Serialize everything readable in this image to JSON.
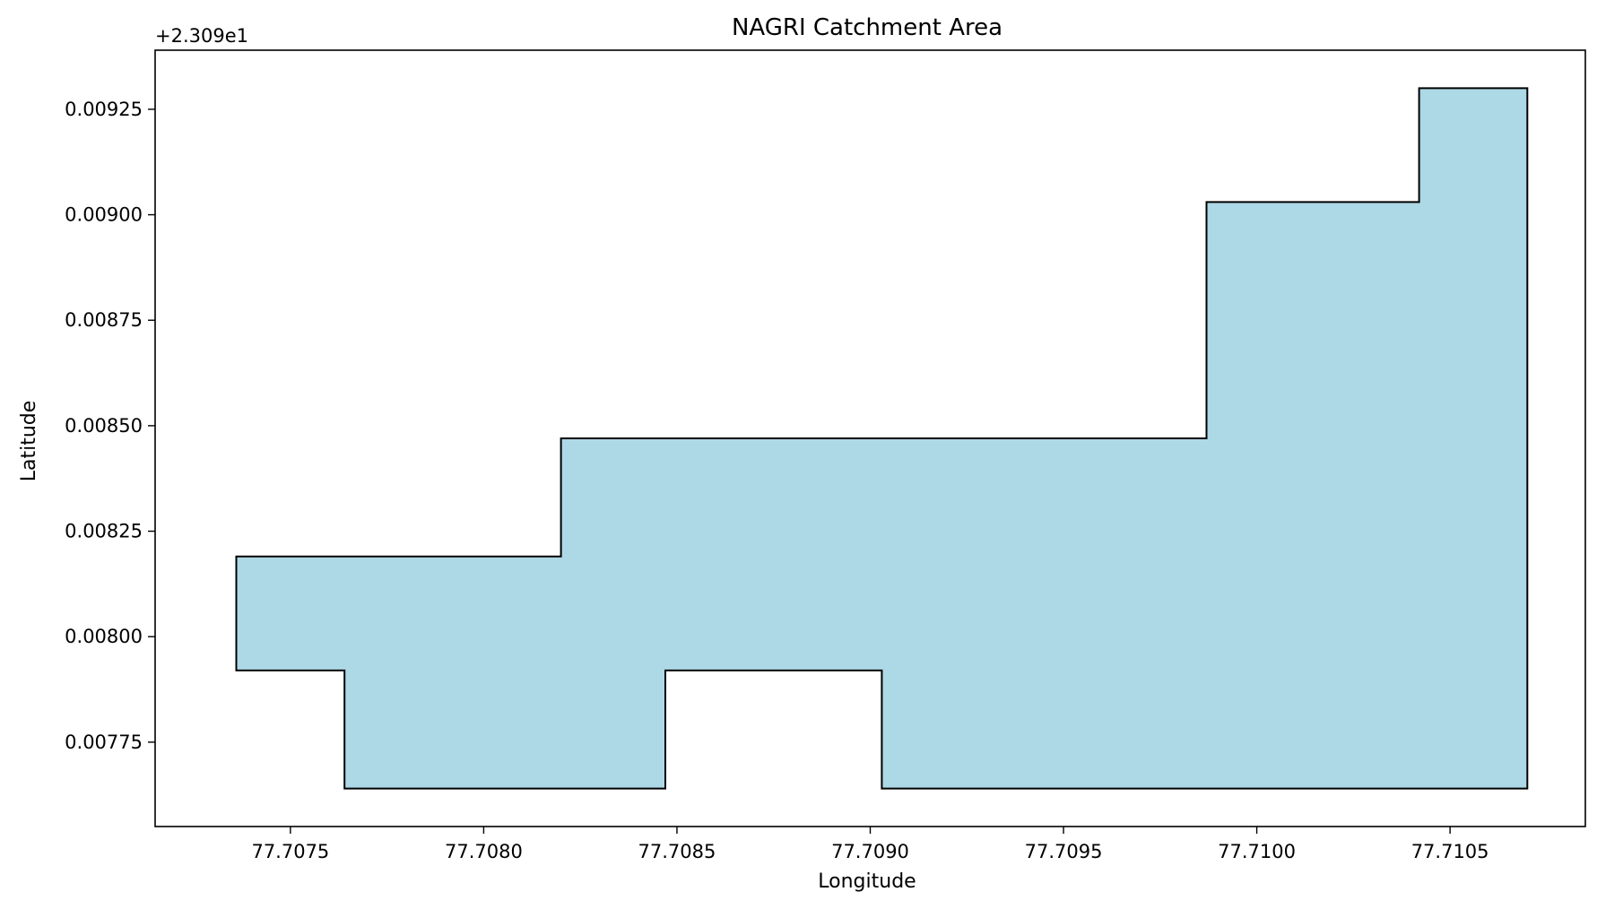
{
  "chart_data": {
    "type": "area",
    "title": "NAGRI Catchment Area",
    "xlabel": "Longitude",
    "ylabel": "Latitude",
    "y_offset_label": "+2.309e1",
    "xlim": [
      77.70715,
      77.71085
    ],
    "ylim": [
      0.00755,
      0.00939
    ],
    "x_ticks": [
      77.7075,
      77.708,
      77.7085,
      77.709,
      77.7095,
      77.71,
      77.7105
    ],
    "x_tick_labels": [
      "77.7075",
      "77.7080",
      "77.7085",
      "77.7090",
      "77.7095",
      "77.7100",
      "77.7105"
    ],
    "y_ticks": [
      0.00775,
      0.008,
      0.00825,
      0.0085,
      0.00875,
      0.009,
      0.00925
    ],
    "y_tick_labels": [
      "0.00775",
      "0.00800",
      "0.00825",
      "0.00850",
      "0.00875",
      "0.00900",
      "0.00925"
    ],
    "grid": false,
    "fill_color": "#add8e6",
    "edge_color": "#000000",
    "polygon": [
      {
        "x": 77.70736,
        "y": 0.00819
      },
      {
        "x": 77.7082,
        "y": 0.00819
      },
      {
        "x": 77.7082,
        "y": 0.00847
      },
      {
        "x": 77.70987,
        "y": 0.00847
      },
      {
        "x": 77.70987,
        "y": 0.00903
      },
      {
        "x": 77.71042,
        "y": 0.00903
      },
      {
        "x": 77.71042,
        "y": 0.0093
      },
      {
        "x": 77.7107,
        "y": 0.0093
      },
      {
        "x": 77.7107,
        "y": 0.00764
      },
      {
        "x": 77.70903,
        "y": 0.00764
      },
      {
        "x": 77.70903,
        "y": 0.00792
      },
      {
        "x": 77.70847,
        "y": 0.00792
      },
      {
        "x": 77.70847,
        "y": 0.00764
      },
      {
        "x": 77.70764,
        "y": 0.00764
      },
      {
        "x": 77.70764,
        "y": 0.00792
      },
      {
        "x": 77.70736,
        "y": 0.00792
      }
    ]
  }
}
